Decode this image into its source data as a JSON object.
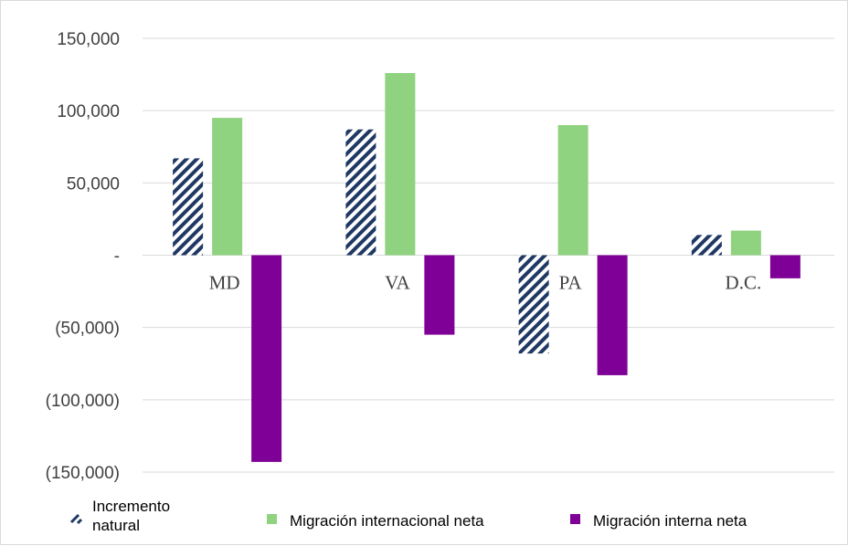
{
  "chart_data": {
    "type": "bar",
    "categories": [
      "MD",
      "VA",
      "PA",
      "D.C."
    ],
    "series": [
      {
        "name": "Incremento natural",
        "values": [
          67000,
          87000,
          -68000,
          14000
        ],
        "color": "#1f3864",
        "pattern": "diagonal-hatch"
      },
      {
        "name": "Migración internacional neta",
        "values": [
          95000,
          126000,
          90000,
          17000
        ],
        "color": "#8fd27f"
      },
      {
        "name": "Migración interna neta",
        "values": [
          -143000,
          -55000,
          -83000,
          -16000
        ],
        "color": "#7f0096"
      }
    ],
    "ylim": [
      -150000,
      150000
    ],
    "yticks": [
      150000,
      100000,
      50000,
      0,
      -50000,
      -100000,
      -150000
    ],
    "ytick_labels": [
      "150,000",
      "100,000",
      "50,000",
      "-",
      "(50,000)",
      "(100,000)",
      "(150,000)"
    ],
    "grid": true,
    "legend_position": "bottom"
  }
}
